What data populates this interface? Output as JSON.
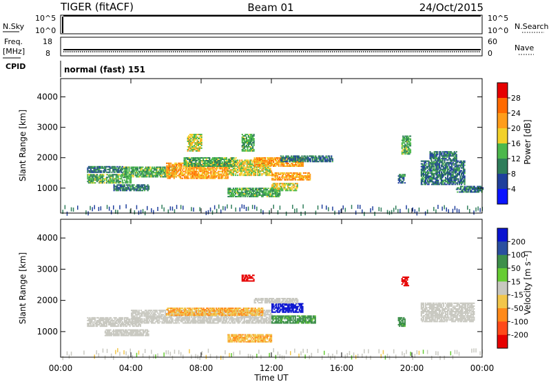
{
  "header": {
    "station": "TIGER (fitACF)",
    "beam": "Beam 01",
    "date": "24/Oct/2015"
  },
  "top_panels": {
    "nsky_label": "N.Sky",
    "nsky_ticks": [
      "10^5",
      "10^0"
    ],
    "nsearch_label": "N.Search",
    "nsearch_ticks": [
      "10^5",
      "10^0"
    ],
    "freq_label_1": "Freq.",
    "freq_label_2": "[MHz]",
    "freq_ticks": [
      "18",
      "8"
    ],
    "nave_label": "Nave",
    "nave_ticks": [
      "60",
      "0"
    ],
    "cpid_label": "CPID",
    "cpid_text": "normal (fast) 151"
  },
  "power_scale": {
    "title": "Power [dB]",
    "labels": [
      "28",
      "24",
      "20",
      "16",
      "12",
      "8",
      "4"
    ],
    "colors": [
      "#e60000",
      "#ff6a00",
      "#ff9d1a",
      "#f2d12a",
      "#4cb84c",
      "#2e7d5a",
      "#1f3f9c",
      "#0a14ff"
    ]
  },
  "velocity_scale": {
    "title": "Velocity [m s⁻¹]",
    "labels": [
      "200",
      "100",
      "50",
      "15",
      "-15",
      "-50",
      "-100",
      "-200"
    ],
    "colors": [
      "#0a14d0",
      "#2a4fa0",
      "#3d8f4a",
      "#66cc33",
      "#c8c8c0",
      "#f2c64a",
      "#ff8a1a",
      "#ff4a1a",
      "#e60000"
    ]
  },
  "chart_data": {
    "type": "heatmap",
    "xlabel": "Time UT",
    "x_ticks": [
      "00:00",
      "04:00",
      "08:00",
      "12:00",
      "16:00",
      "20:00",
      "00:00"
    ],
    "ylabel": "Slant Range [km]",
    "y_ticks": [
      "1000",
      "2000",
      "3000",
      "4000"
    ],
    "ylim": [
      180,
      4600
    ],
    "xlim_hours": [
      0,
      24
    ],
    "panels": [
      "Power [dB]",
      "Velocity [m s⁻¹]"
    ],
    "power_regions": [
      {
        "t0": 1.5,
        "t1": 4.0,
        "r0": 1150,
        "r1": 1450,
        "level": 12
      },
      {
        "t0": 1.5,
        "t1": 3.5,
        "r0": 1500,
        "r1": 1700,
        "level": 8
      },
      {
        "t0": 3.5,
        "t1": 6.5,
        "r0": 1350,
        "r1": 1700,
        "level": 12
      },
      {
        "t0": 3.0,
        "t1": 5.0,
        "r0": 900,
        "r1": 1100,
        "level": 8
      },
      {
        "t0": 6.0,
        "t1": 9.5,
        "r0": 1300,
        "r1": 1800,
        "level": 20
      },
      {
        "t0": 9.5,
        "t1": 12.0,
        "r0": 1400,
        "r1": 1900,
        "level": 16
      },
      {
        "t0": 7.0,
        "t1": 10.0,
        "r0": 1700,
        "r1": 2000,
        "level": 12
      },
      {
        "t0": 11.0,
        "t1": 13.8,
        "r0": 1700,
        "r1": 2000,
        "level": 20
      },
      {
        "t0": 12.5,
        "t1": 15.5,
        "r0": 1850,
        "r1": 2050,
        "level": 8
      },
      {
        "t0": 12.0,
        "t1": 14.2,
        "r0": 1250,
        "r1": 1500,
        "level": 20
      },
      {
        "t0": 9.5,
        "t1": 12.5,
        "r0": 700,
        "r1": 1000,
        "level": 12
      },
      {
        "t0": 12.0,
        "t1": 13.5,
        "r0": 900,
        "r1": 1150,
        "level": 16
      },
      {
        "t0": 19.2,
        "t1": 19.6,
        "r0": 1150,
        "r1": 1450,
        "level": 8
      },
      {
        "t0": 19.4,
        "t1": 19.9,
        "r0": 2100,
        "r1": 2700,
        "level": 12
      },
      {
        "t0": 20.5,
        "t1": 23.0,
        "r0": 1100,
        "r1": 1900,
        "level": 8
      },
      {
        "t0": 21.0,
        "t1": 22.5,
        "r0": 1900,
        "r1": 2200,
        "level": 8
      },
      {
        "t0": 22.5,
        "t1": 24.0,
        "r0": 850,
        "r1": 1050,
        "level": 8
      },
      {
        "t0": 7.2,
        "t1": 8.0,
        "r0": 2200,
        "r1": 2750,
        "level": 16
      },
      {
        "t0": 10.3,
        "t1": 11.0,
        "r0": 2200,
        "r1": 2750,
        "level": 12
      }
    ],
    "velocity_regions": [
      {
        "t0": 1.5,
        "t1": 4.5,
        "r0": 1150,
        "r1": 1450,
        "level": 0
      },
      {
        "t0": 4.0,
        "t1": 12.0,
        "r0": 1250,
        "r1": 1700,
        "level": 0
      },
      {
        "t0": 2.5,
        "t1": 5.0,
        "r0": 850,
        "r1": 1050,
        "level": 0
      },
      {
        "t0": 6.0,
        "t1": 11.5,
        "r0": 1500,
        "r1": 1750,
        "level": -30
      },
      {
        "t0": 9.5,
        "t1": 12.0,
        "r0": 650,
        "r1": 900,
        "level": -30
      },
      {
        "t0": 12.0,
        "t1": 13.8,
        "r0": 1600,
        "r1": 1900,
        "level": 200
      },
      {
        "t0": 12.0,
        "t1": 14.5,
        "r0": 1250,
        "r1": 1500,
        "level": 40
      },
      {
        "t0": 11.0,
        "t1": 13.5,
        "r0": 1900,
        "r1": 2050,
        "level": 0
      },
      {
        "t0": 19.2,
        "t1": 19.6,
        "r0": 1150,
        "r1": 1450,
        "level": 40
      },
      {
        "t0": 19.4,
        "t1": 19.8,
        "r0": 2450,
        "r1": 2750,
        "level": -200
      },
      {
        "t0": 20.5,
        "t1": 23.5,
        "r0": 1300,
        "r1": 1900,
        "level": 0
      },
      {
        "t0": 10.3,
        "t1": 11.0,
        "r0": 2600,
        "r1": 2800,
        "level": -200
      }
    ]
  }
}
